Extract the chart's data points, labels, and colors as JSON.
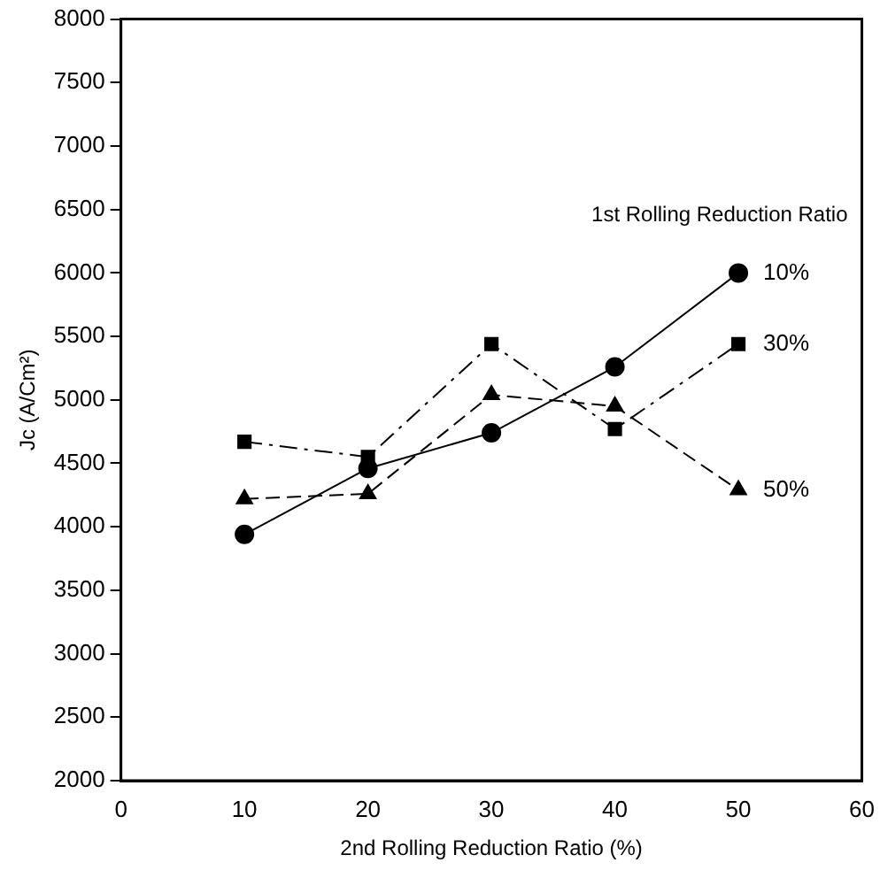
{
  "chart_data": {
    "type": "line",
    "xlabel": "2nd Rolling Reduction Ratio (%)",
    "ylabel": "Jc (A/Cm²)",
    "legend_title": "1st Rolling Reduction Ratio",
    "x": [
      10,
      20,
      30,
      40,
      50
    ],
    "xlim": [
      0,
      60
    ],
    "xticks": [
      0,
      10,
      20,
      30,
      40,
      50,
      60
    ],
    "ylim": [
      2000,
      8000
    ],
    "yticks": [
      2000,
      2500,
      3000,
      3500,
      4000,
      4500,
      5000,
      5500,
      6000,
      6500,
      7000,
      7500,
      8000
    ],
    "grid": false,
    "legend": false,
    "series": [
      {
        "name": "10%",
        "color": "#000000",
        "marker": "circle",
        "line_style": "solid",
        "values": [
          3940,
          4460,
          4740,
          5260,
          6000
        ]
      },
      {
        "name": "30%",
        "color": "#000000",
        "marker": "square",
        "line_style": "dashdot",
        "values": [
          4670,
          4550,
          5440,
          4770,
          5440
        ]
      },
      {
        "name": "50%",
        "color": "#000000",
        "marker": "triangle",
        "line_style": "dashed",
        "values": [
          4220,
          4260,
          5040,
          4950,
          4290
        ]
      }
    ]
  }
}
